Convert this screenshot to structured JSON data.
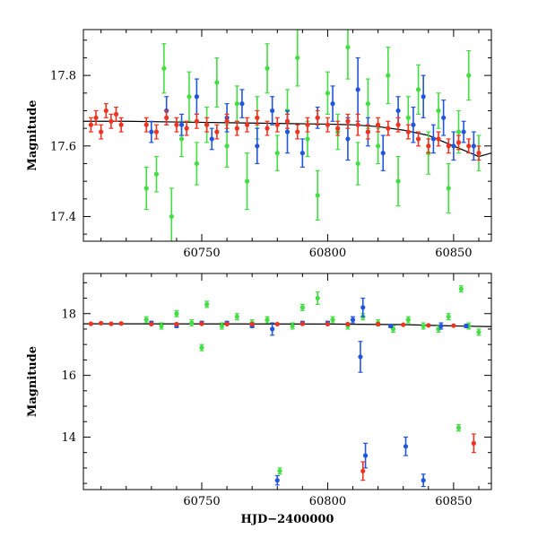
{
  "chart_data": [
    {
      "type": "scatter",
      "panel": "top",
      "title": "",
      "xlabel": "",
      "ylabel": "Magnitude",
      "xlim": [
        60703,
        60865
      ],
      "ylim": [
        17.93,
        17.33
      ],
      "y_inverted": true,
      "x_ticks": [
        60750,
        60800,
        60850
      ],
      "y_ticks": [
        17.4,
        17.6,
        17.8
      ],
      "y_tick_labels": [
        "17.4",
        "17.6",
        "17.8"
      ],
      "colors": {
        "green": "#44dd44",
        "blue": "#2255dd",
        "red": "#ee3322",
        "model": "#000000"
      },
      "model_line": {
        "x": [
          60703,
          60720,
          60740,
          60760,
          60780,
          60800,
          60810,
          60820,
          60830,
          60840,
          60845,
          60850,
          60855,
          60860,
          60865
        ],
        "y": [
          17.67,
          17.67,
          17.668,
          17.666,
          17.664,
          17.662,
          17.66,
          17.655,
          17.645,
          17.63,
          17.615,
          17.6,
          17.585,
          17.57,
          17.58
        ]
      },
      "series": [
        {
          "color": "green",
          "x": [
            60728,
            60732,
            60735,
            60738,
            60742,
            60745,
            60748,
            60752,
            60756,
            60760,
            60764,
            60768,
            60772,
            60776,
            60780,
            60784,
            60788,
            60792,
            60796,
            60800,
            60804,
            60808,
            60812,
            60816,
            60820,
            60824,
            60828,
            60832,
            60836,
            60840,
            60844,
            60848,
            60852,
            60856,
            60860
          ],
          "y": [
            17.48,
            17.52,
            17.82,
            17.4,
            17.62,
            17.74,
            17.55,
            17.66,
            17.78,
            17.6,
            17.72,
            17.5,
            17.68,
            17.82,
            17.58,
            17.7,
            17.85,
            17.62,
            17.46,
            17.75,
            17.64,
            17.88,
            17.55,
            17.72,
            17.6,
            17.8,
            17.5,
            17.68,
            17.76,
            17.58,
            17.7,
            17.48,
            17.64,
            17.8,
            17.58
          ],
          "yerr": [
            0.06,
            0.05,
            0.07,
            0.08,
            0.05,
            0.07,
            0.06,
            0.05,
            0.07,
            0.06,
            0.05,
            0.08,
            0.06,
            0.07,
            0.05,
            0.06,
            0.08,
            0.05,
            0.07,
            0.06,
            0.05,
            0.09,
            0.06,
            0.07,
            0.05,
            0.08,
            0.07,
            0.06,
            0.07,
            0.06,
            0.05,
            0.07,
            0.06,
            0.07,
            0.05
          ]
        },
        {
          "color": "blue",
          "x": [
            60730,
            60736,
            60742,
            60748,
            60754,
            60760,
            60766,
            60772,
            60778,
            60784,
            60790,
            60796,
            60802,
            60808,
            60812,
            60816,
            60822,
            60828,
            60834,
            60838,
            60842,
            60846,
            60850,
            60854,
            60858
          ],
          "y": [
            17.64,
            17.7,
            17.66,
            17.74,
            17.62,
            17.68,
            17.72,
            17.6,
            17.7,
            17.64,
            17.58,
            17.68,
            17.72,
            17.62,
            17.76,
            17.64,
            17.58,
            17.7,
            17.66,
            17.74,
            17.62,
            17.68,
            17.6,
            17.64,
            17.6
          ],
          "yerr": [
            0.03,
            0.04,
            0.03,
            0.05,
            0.03,
            0.04,
            0.04,
            0.05,
            0.04,
            0.06,
            0.04,
            0.03,
            0.05,
            0.06,
            0.09,
            0.04,
            0.05,
            0.04,
            0.05,
            0.06,
            0.04,
            0.05,
            0.04,
            0.03,
            0.04
          ]
        },
        {
          "color": "red",
          "x": [
            60706,
            60708,
            60710,
            60712,
            60714,
            60716,
            60718,
            60728,
            60732,
            60736,
            60740,
            60744,
            60748,
            60752,
            60756,
            60760,
            60764,
            60768,
            60772,
            60776,
            60780,
            60784,
            60788,
            60792,
            60796,
            60800,
            60804,
            60808,
            60812,
            60816,
            60820,
            60824,
            60828,
            60832,
            60836,
            60840,
            60844,
            60848,
            60852,
            60856,
            60860
          ],
          "y": [
            17.66,
            17.68,
            17.64,
            17.7,
            17.67,
            17.69,
            17.66,
            17.66,
            17.64,
            17.68,
            17.66,
            17.65,
            17.67,
            17.66,
            17.64,
            17.67,
            17.65,
            17.66,
            17.68,
            17.65,
            17.66,
            17.67,
            17.64,
            17.66,
            17.68,
            17.66,
            17.65,
            17.67,
            17.66,
            17.64,
            17.66,
            17.65,
            17.66,
            17.64,
            17.62,
            17.6,
            17.62,
            17.6,
            17.61,
            17.6,
            17.58
          ],
          "yerr": [
            0.02,
            0.02,
            0.02,
            0.02,
            0.02,
            0.02,
            0.02,
            0.02,
            0.02,
            0.02,
            0.02,
            0.02,
            0.02,
            0.02,
            0.02,
            0.02,
            0.02,
            0.02,
            0.02,
            0.02,
            0.02,
            0.02,
            0.02,
            0.02,
            0.02,
            0.02,
            0.02,
            0.02,
            0.03,
            0.02,
            0.02,
            0.02,
            0.02,
            0.02,
            0.02,
            0.02,
            0.02,
            0.02,
            0.02,
            0.02,
            0.02
          ]
        }
      ]
    },
    {
      "type": "scatter",
      "panel": "bottom",
      "title": "",
      "xlabel": "HJD−2400000",
      "ylabel": "Magnitude",
      "xlim": [
        60703,
        60865
      ],
      "ylim": [
        19.3,
        12.3
      ],
      "y_inverted": true,
      "x_ticks": [
        60750,
        60800,
        60850
      ],
      "x_tick_labels": [
        "60750",
        "60800",
        "60850"
      ],
      "y_ticks": [
        14,
        16,
        18
      ],
      "y_tick_labels": [
        "14",
        "16",
        "18"
      ],
      "colors": {
        "green": "#44dd44",
        "blue": "#2255dd",
        "red": "#ee3322",
        "model": "#000000"
      },
      "model_line": {
        "x": [
          60703,
          60760,
          60800,
          60830,
          60850,
          60865
        ],
        "y": [
          17.67,
          17.666,
          17.662,
          17.645,
          17.6,
          17.58
        ]
      },
      "series": [
        {
          "color": "green",
          "x": [
            60728,
            60734,
            60740,
            60746,
            60750,
            60752,
            60758,
            60764,
            60770,
            60776,
            60781,
            60786,
            60790,
            60796,
            60802,
            60808,
            60814,
            60820,
            60826,
            60832,
            60838,
            60844,
            60848,
            60852,
            60853,
            60856,
            60860
          ],
          "y": [
            17.8,
            17.6,
            18.0,
            17.7,
            16.9,
            18.3,
            17.6,
            17.9,
            17.7,
            17.8,
            12.9,
            17.6,
            18.2,
            18.5,
            17.8,
            17.6,
            17.9,
            17.7,
            17.5,
            17.8,
            17.6,
            17.5,
            17.9,
            14.3,
            18.8,
            17.6,
            17.4
          ],
          "yerr": [
            0.1,
            0.1,
            0.1,
            0.1,
            0.1,
            0.1,
            0.1,
            0.1,
            0.1,
            0.1,
            0.1,
            0.1,
            0.1,
            0.2,
            0.1,
            0.1,
            0.1,
            0.1,
            0.1,
            0.1,
            0.1,
            0.1,
            0.1,
            0.1,
            0.1,
            0.1,
            0.1
          ]
        },
        {
          "color": "blue",
          "x": [
            60730,
            60740,
            60750,
            60760,
            60770,
            60778,
            60780,
            60790,
            60800,
            60810,
            60813,
            60814,
            60815,
            60825,
            60831,
            60838,
            60845,
            60855
          ],
          "y": [
            17.7,
            17.6,
            17.7,
            17.7,
            17.6,
            17.5,
            12.6,
            17.7,
            17.7,
            17.8,
            16.6,
            18.2,
            13.4,
            17.6,
            13.7,
            12.6,
            17.6,
            17.6
          ],
          "yerr": [
            0.05,
            0.05,
            0.05,
            0.05,
            0.05,
            0.2,
            0.15,
            0.05,
            0.05,
            0.1,
            0.5,
            0.3,
            0.4,
            0.05,
            0.3,
            0.2,
            0.1,
            0.05
          ]
        },
        {
          "color": "red",
          "x": [
            60706,
            60710,
            60714,
            60718,
            60730,
            60740,
            60750,
            60760,
            60770,
            60780,
            60790,
            60800,
            60808,
            60814,
            60820,
            60830,
            60840,
            60850,
            60858
          ],
          "y": [
            17.67,
            17.69,
            17.67,
            17.68,
            17.66,
            17.66,
            17.67,
            17.66,
            17.66,
            17.66,
            17.67,
            17.66,
            17.66,
            12.9,
            17.66,
            17.64,
            17.62,
            17.61,
            13.8
          ],
          "yerr": [
            0.02,
            0.02,
            0.02,
            0.02,
            0.02,
            0.02,
            0.02,
            0.02,
            0.02,
            0.02,
            0.02,
            0.02,
            0.02,
            0.3,
            0.02,
            0.02,
            0.02,
            0.02,
            0.3
          ]
        }
      ]
    }
  ]
}
